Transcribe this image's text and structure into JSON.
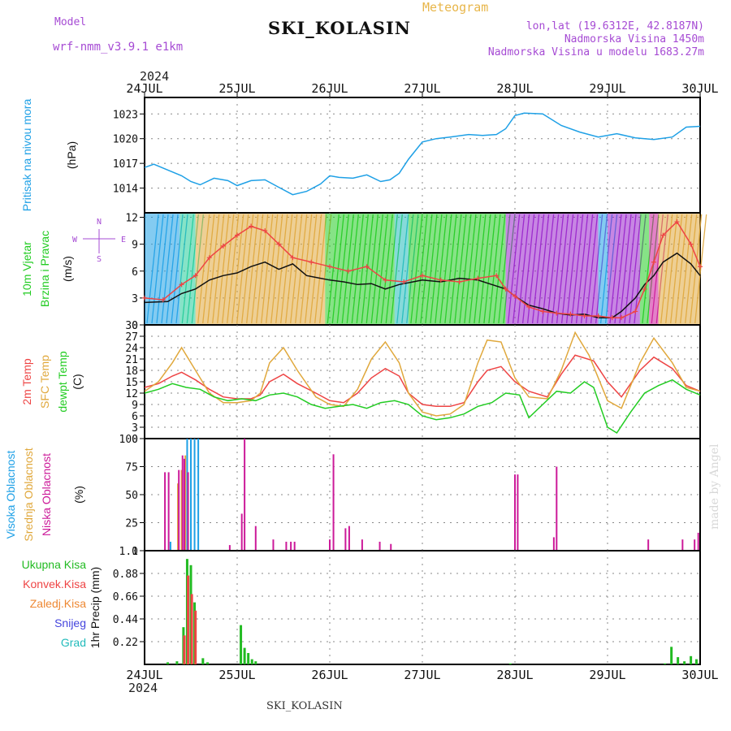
{
  "header": {
    "model_label": "Model",
    "model_name": "wrf-nmm_v3.9.1 e1km",
    "station": "SKI_KOLASIN",
    "title": "Meteogram",
    "coords": "lon,lat (19.6312E, 42.8187N)",
    "elevation": "Nadmorska Visina 1450m",
    "model_elevation": "Nadmorska Visina u modelu 1683.27m",
    "year_top": "2024",
    "year_bottom": "2024",
    "bottom_station": "SKI_KOLASIN",
    "credit": "made by Angel"
  },
  "colors": {
    "pressure": "#1ea0e6",
    "temp2m": "#ee4444",
    "sfc": "#e0a83c",
    "dewpt": "#22cc22",
    "high_cloud": "#1ea0e6",
    "mid_cloud": "#e0a83c",
    "low_cloud": "#cc1a99",
    "total_precip": "#22bb22",
    "conv_precip": "#ee4444",
    "freezing": "#ee8833",
    "snow": "#4444dd",
    "hail": "#22bbbb",
    "model": "#a64bd4"
  },
  "x_axis": {
    "days": [
      "24JUL",
      "25JUL",
      "26JUL",
      "27JUL",
      "28JUL",
      "29JUL",
      "30JUL"
    ]
  },
  "chart_data": [
    {
      "type": "line",
      "panel": "pressure",
      "ylabel_lines": [
        "Pritisak na nivou mora"
      ],
      "unit": "(hPa)",
      "yticks": [
        1014,
        1017,
        1020,
        1023
      ],
      "ylim": [
        1011,
        1025
      ],
      "series": [
        {
          "name": "",
          "color_key": "pressure",
          "x": [
            0,
            0.1,
            0.25,
            0.4,
            0.5,
            0.6,
            0.75,
            0.9,
            1.0,
            1.15,
            1.3,
            1.45,
            1.6,
            1.75,
            1.9,
            2.0,
            2.1,
            2.25,
            2.4,
            2.55,
            2.65,
            2.75,
            2.85,
            3.0,
            3.15,
            3.3,
            3.5,
            3.65,
            3.8,
            3.9,
            4.0,
            4.1,
            4.3,
            4.5,
            4.7,
            4.9,
            5.1,
            5.3,
            5.5,
            5.7,
            5.85,
            6.0
          ],
          "y": [
            1016.5,
            1016.9,
            1016.2,
            1015.5,
            1014.8,
            1014.4,
            1015.2,
            1014.9,
            1014.3,
            1014.9,
            1015.0,
            1014.1,
            1013.2,
            1013.6,
            1014.5,
            1015.5,
            1015.3,
            1015.2,
            1015.6,
            1014.8,
            1015.0,
            1015.8,
            1017.5,
            1019.6,
            1020.0,
            1020.2,
            1020.5,
            1020.4,
            1020.5,
            1021.2,
            1022.8,
            1023.1,
            1023.0,
            1021.6,
            1020.8,
            1020.2,
            1020.6,
            1020.1,
            1019.9,
            1020.2,
            1021.4,
            1021.5
          ]
        }
      ]
    },
    {
      "type": "line",
      "panel": "wind",
      "ylabel_lines": [
        "10m Vjetar",
        "Brzina i Pravac"
      ],
      "unit": "(m/s)",
      "compass": [
        "N",
        "W",
        "E",
        "S"
      ],
      "yticks": [
        0,
        3,
        6,
        9,
        12
      ],
      "ylim": [
        0,
        12.5
      ],
      "series": [
        {
          "name": "wind_speed",
          "color_key": "",
          "x": [
            0,
            0.25,
            0.4,
            0.55,
            0.7,
            0.85,
            1.0,
            1.15,
            1.3,
            1.45,
            1.6,
            1.75,
            1.9,
            2.0,
            2.15,
            2.3,
            2.45,
            2.6,
            2.75,
            2.9,
            3.0,
            3.2,
            3.4,
            3.6,
            3.75,
            3.9,
            4.0,
            4.15,
            4.3,
            4.45,
            4.6,
            4.75,
            4.9,
            5.05,
            5.15,
            5.3,
            5.4,
            5.5,
            5.6,
            5.75,
            5.9,
            6.0
          ],
          "y": [
            2.5,
            2.6,
            3.5,
            4.0,
            5.0,
            5.5,
            5.8,
            6.5,
            7.0,
            6.2,
            6.8,
            5.5,
            5.2,
            5.0,
            4.8,
            4.5,
            4.6,
            4.0,
            4.5,
            4.8,
            5.0,
            4.8,
            5.2,
            5.0,
            4.5,
            4.0,
            3.2,
            2.2,
            1.8,
            1.3,
            1.1,
            1.2,
            0.8,
            0.8,
            1.5,
            3.0,
            4.5,
            5.5,
            7.0,
            8.0,
            6.8,
            5.5
          ]
        },
        {
          "name": "wind_gust",
          "color_key": "temp2m",
          "x": [
            0,
            0.2,
            0.4,
            0.55,
            0.7,
            0.85,
            1.0,
            1.15,
            1.3,
            1.45,
            1.6,
            1.8,
            2.0,
            2.2,
            2.4,
            2.6,
            2.8,
            3.0,
            3.2,
            3.4,
            3.6,
            3.8,
            3.9,
            4.0,
            4.15,
            4.3,
            4.45,
            4.6,
            4.75,
            4.9,
            5.05,
            5.15,
            5.3,
            5.4,
            5.5,
            5.6,
            5.75,
            5.9,
            6.0
          ],
          "y": [
            3.0,
            2.8,
            4.5,
            5.5,
            7.5,
            8.8,
            10.0,
            11.0,
            10.5,
            9.0,
            7.5,
            7.0,
            6.5,
            6.0,
            6.5,
            5.0,
            4.8,
            5.5,
            5.0,
            4.8,
            5.2,
            5.5,
            4.0,
            3.2,
            2.0,
            1.5,
            1.3,
            1.2,
            1.0,
            1.0,
            0.8,
            0.8,
            1.5,
            4.0,
            7.0,
            10.0,
            11.5,
            9.0,
            6.5
          ]
        }
      ],
      "direction_bands": [
        {
          "from": 0.0,
          "to": 0.38,
          "color": "#1ea0e6"
        },
        {
          "from": 0.38,
          "to": 0.55,
          "color": "#22cc99"
        },
        {
          "from": 0.55,
          "to": 1.95,
          "color": "#e0a83c"
        },
        {
          "from": 1.95,
          "to": 2.7,
          "color": "#22cc22"
        },
        {
          "from": 2.7,
          "to": 2.85,
          "color": "#22bbbb"
        },
        {
          "from": 2.85,
          "to": 3.9,
          "color": "#22cc22"
        },
        {
          "from": 3.9,
          "to": 4.9,
          "color": "#9922cc"
        },
        {
          "from": 4.9,
          "to": 5.0,
          "color": "#1ea0e6"
        },
        {
          "from": 5.0,
          "to": 5.35,
          "color": "#9922cc"
        },
        {
          "from": 5.35,
          "to": 5.45,
          "color": "#22cc22"
        },
        {
          "from": 5.45,
          "to": 5.55,
          "color": "#cc1a99"
        },
        {
          "from": 5.55,
          "to": 6.0,
          "color": "#e0a83c"
        }
      ]
    },
    {
      "type": "line",
      "panel": "temperature",
      "ylabel_lines": [
        "2m Temp",
        "SFC Temp",
        "dewpt Temp"
      ],
      "label_color_keys": [
        "temp2m",
        "sfc",
        "dewpt"
      ],
      "unit": "(C)",
      "yticks": [
        0,
        3,
        6,
        9,
        12,
        15,
        18,
        21,
        24,
        27,
        30
      ],
      "ylim": [
        0,
        30
      ],
      "series": [
        {
          "name": "2m Temp",
          "color_key": "temp2m",
          "x": [
            0,
            0.15,
            0.3,
            0.4,
            0.55,
            0.7,
            0.85,
            1.0,
            1.15,
            1.25,
            1.35,
            1.5,
            1.65,
            1.85,
            2.0,
            2.15,
            2.3,
            2.45,
            2.6,
            2.75,
            2.85,
            3.0,
            3.15,
            3.3,
            3.45,
            3.6,
            3.7,
            3.85,
            4.0,
            4.15,
            4.35,
            4.5,
            4.65,
            4.85,
            5.0,
            5.15,
            5.35,
            5.5,
            5.7,
            5.85,
            6.0
          ],
          "y": [
            13.5,
            14.5,
            16.5,
            17.5,
            15.5,
            13.0,
            11.0,
            10.5,
            10.5,
            11.5,
            15.0,
            17.0,
            14.5,
            12.0,
            10.0,
            9.5,
            12.0,
            16.0,
            18.5,
            16.5,
            12.0,
            9.0,
            8.5,
            8.5,
            9.5,
            15.0,
            18.0,
            19.0,
            15.0,
            12.5,
            11.0,
            17.0,
            22.0,
            20.5,
            15.0,
            11.0,
            18.0,
            21.5,
            18.5,
            14.0,
            12.5
          ]
        },
        {
          "name": "SFC Temp",
          "color_key": "sfc",
          "x": [
            0,
            0.15,
            0.3,
            0.4,
            0.55,
            0.7,
            0.85,
            1.0,
            1.15,
            1.25,
            1.35,
            1.5,
            1.65,
            1.85,
            2.0,
            2.15,
            2.3,
            2.45,
            2.6,
            2.75,
            2.85,
            3.0,
            3.15,
            3.3,
            3.45,
            3.6,
            3.7,
            3.85,
            4.0,
            4.15,
            4.35,
            4.5,
            4.65,
            4.8,
            5.0,
            5.15,
            5.35,
            5.5,
            5.7,
            5.85,
            6.0
          ],
          "y": [
            12.5,
            15.0,
            20.0,
            24.0,
            18.0,
            12.0,
            9.5,
            9.5,
            10.0,
            12.0,
            20.0,
            24.0,
            18.0,
            11.0,
            9.0,
            8.5,
            13.0,
            21.0,
            25.5,
            20.0,
            12.0,
            7.0,
            6.0,
            6.5,
            9.0,
            20.0,
            26.0,
            25.5,
            16.0,
            11.0,
            10.5,
            18.0,
            28.0,
            22.0,
            10.0,
            8.0,
            20.0,
            26.5,
            20.0,
            13.5,
            12.5
          ]
        },
        {
          "name": "dewpt Temp",
          "color_key": "dewpt",
          "x": [
            0,
            0.15,
            0.3,
            0.45,
            0.6,
            0.75,
            0.9,
            1.05,
            1.2,
            1.35,
            1.5,
            1.65,
            1.8,
            1.95,
            2.1,
            2.25,
            2.4,
            2.55,
            2.7,
            2.85,
            3.0,
            3.15,
            3.3,
            3.45,
            3.6,
            3.75,
            3.9,
            4.05,
            4.15,
            4.3,
            4.45,
            4.6,
            4.75,
            4.85,
            5.0,
            5.1,
            5.25,
            5.4,
            5.55,
            5.7,
            5.85,
            6.0
          ],
          "y": [
            12.0,
            13.0,
            14.5,
            13.5,
            13.0,
            11.0,
            10.0,
            10.5,
            10.0,
            11.5,
            12.0,
            11.0,
            9.0,
            8.0,
            8.5,
            9.0,
            8.0,
            9.5,
            10.0,
            9.0,
            6.0,
            5.0,
            5.5,
            6.5,
            8.5,
            9.5,
            12.0,
            11.5,
            5.5,
            9.0,
            12.5,
            12.0,
            15.0,
            13.5,
            3.0,
            1.5,
            7.0,
            12.0,
            14.0,
            15.5,
            13.0,
            11.5
          ]
        }
      ]
    },
    {
      "type": "bar",
      "panel": "cloud",
      "ylabel_lines": [
        "Visoka Oblacnost",
        "Srednja Oblacnost",
        "Niska Oblacnost"
      ],
      "label_color_keys": [
        "high_cloud",
        "mid_cloud",
        "low_cloud"
      ],
      "unit": "(%)",
      "yticks": [
        0,
        25,
        50,
        75,
        100
      ],
      "ylim": [
        0,
        100
      ],
      "series": [
        {
          "name": "Visoka Oblacnost",
          "color_key": "high_cloud",
          "x": [
            0.28,
            0.46,
            0.5,
            0.54,
            0.58
          ],
          "y": [
            8,
            100,
            100,
            100,
            100
          ]
        },
        {
          "name": "Srednja Oblacnost",
          "color_key": "mid_cloud",
          "x": [
            0.36,
            0.4,
            0.44
          ],
          "y": [
            60,
            72,
            85
          ]
        },
        {
          "name": "Niska Oblacnost",
          "color_key": "low_cloud",
          "x": [
            0.22,
            0.26,
            0.37,
            0.41,
            0.43,
            0.47,
            0.92,
            1.05,
            1.08,
            1.2,
            1.39,
            1.53,
            1.58,
            1.62,
            2.0,
            2.04,
            2.17,
            2.21,
            2.35,
            2.54,
            2.66,
            4.0,
            4.03,
            4.42,
            4.45,
            5.44,
            5.81,
            5.94,
            5.98
          ],
          "y": [
            70,
            70,
            72,
            85,
            82,
            70,
            5,
            33,
            100,
            22,
            10,
            8,
            8,
            8,
            10,
            86,
            20,
            22,
            10,
            8,
            6,
            68,
            68,
            12,
            75,
            10,
            10,
            10,
            16
          ]
        }
      ]
    },
    {
      "type": "bar",
      "panel": "precipitation",
      "ylabel_lines": [
        "1hr Precip (mm)"
      ],
      "legend": [
        {
          "name": "Ukupna Kisa",
          "color_key": "total_precip"
        },
        {
          "name": "Konvek.Kisa",
          "color_key": "conv_precip"
        },
        {
          "name": "Zaledj.Kisa",
          "color_key": "freezing"
        },
        {
          "name": "Snijeg",
          "color_key": "snow"
        },
        {
          "name": "Grad",
          "color_key": "hail"
        }
      ],
      "yticks": [
        0.22,
        0.44,
        0.66,
        0.88,
        1.1
      ],
      "ylim": [
        0,
        1.1
      ],
      "series": [
        {
          "name": "Ukupna Kisa",
          "color_key": "total_precip",
          "x": [
            0.25,
            0.35,
            0.42,
            0.46,
            0.5,
            0.54,
            0.63,
            0.68,
            1.04,
            1.08,
            1.12,
            1.16,
            1.2,
            3.95,
            5.62,
            5.69,
            5.76,
            5.83,
            5.9,
            5.96
          ],
          "y": [
            0.02,
            0.03,
            0.36,
            1.02,
            0.96,
            0.6,
            0.06,
            0.02,
            0.38,
            0.16,
            0.11,
            0.05,
            0.03,
            0.01,
            0.01,
            0.17,
            0.07,
            0.03,
            0.08,
            0.05
          ]
        },
        {
          "name": "Konvek.Kisa",
          "color_key": "conv_precip",
          "x": [
            0.43,
            0.47,
            0.51,
            0.55
          ],
          "y": [
            0.28,
            0.86,
            0.68,
            0.52
          ]
        }
      ]
    }
  ]
}
